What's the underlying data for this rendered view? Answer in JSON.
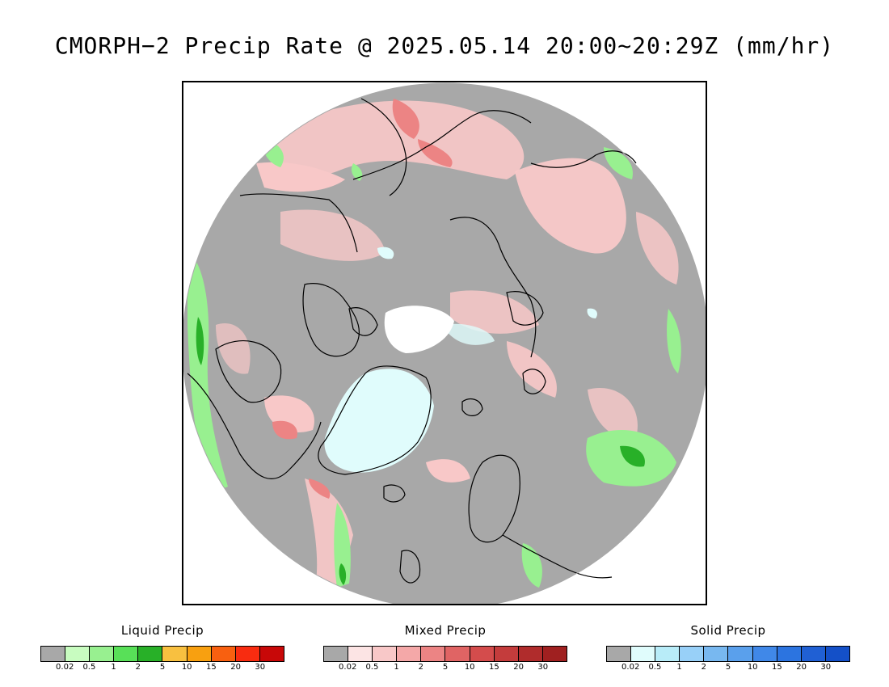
{
  "title": "CMORPH−2 Precip Rate @ 2025.05.14 20:00~20:29Z (mm/hr)",
  "map": {
    "projection": "north polar stereographic",
    "background_color": "#a8a8a8",
    "no_data_color": "#ffffff",
    "coastline_color": "#000000"
  },
  "legends": [
    {
      "title": "Liquid Precip",
      "colors": [
        "#a8a8a8",
        "#c8fcc0",
        "#98f090",
        "#58e058",
        "#28b028",
        "#f8c040",
        "#f8a010",
        "#f86010",
        "#f82c10",
        "#c80808"
      ],
      "ticks": [
        "0.02",
        "0.5",
        "1",
        "2",
        "5",
        "10",
        "15",
        "20",
        "30"
      ]
    },
    {
      "title": "Mixed Precip",
      "colors": [
        "#a8a8a8",
        "#fce4e4",
        "#f8c8c8",
        "#f4a8a8",
        "#ec8484",
        "#e06464",
        "#d44c4c",
        "#c43c3c",
        "#b02c2c",
        "#a02020"
      ],
      "ticks": [
        "0.02",
        "0.5",
        "1",
        "2",
        "5",
        "10",
        "15",
        "20",
        "30"
      ]
    },
    {
      "title": "Solid Precip",
      "colors": [
        "#a8a8a8",
        "#e0fcfc",
        "#b8ecf8",
        "#98d0f8",
        "#78b8f0",
        "#5aa0ec",
        "#4088e8",
        "#2c74e0",
        "#2060d4",
        "#1450c8"
      ],
      "ticks": [
        "0.02",
        "0.5",
        "1",
        "2",
        "5",
        "10",
        "15",
        "20",
        "30"
      ]
    }
  ]
}
